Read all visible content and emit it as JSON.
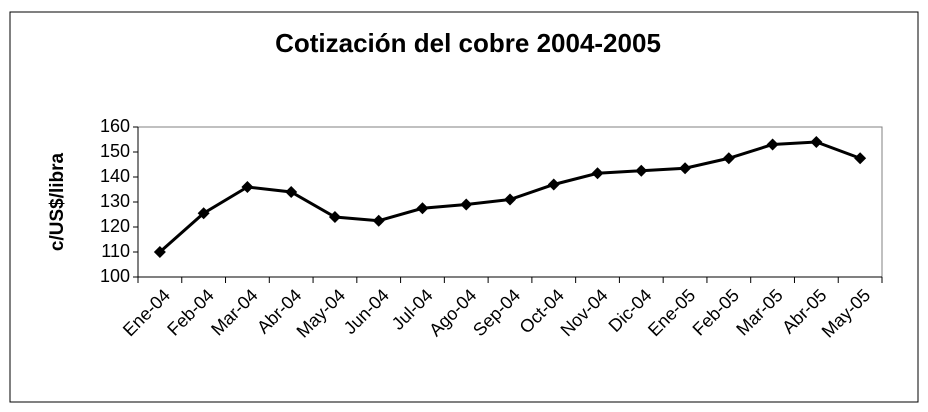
{
  "chart_data": {
    "type": "line",
    "title": "Cotización del cobre 2004-2005",
    "y_label": "c/US$/libra",
    "categories": [
      "Ene-04",
      "Feb-04",
      "Mar-04",
      "Abr-04",
      "May-04",
      "Jun-04",
      "Jul-04",
      "Ago-04",
      "Sep-04",
      "Oct-04",
      "Nov-04",
      "Dic-04",
      "Ene-05",
      "Feb-05",
      "Mar-05",
      "Abr-05",
      "May-05"
    ],
    "series": [
      {
        "name": "Cotización",
        "color": "#000000",
        "values": [
          110,
          125.5,
          136,
          134,
          124,
          122.5,
          127.5,
          129,
          131,
          137,
          141.5,
          142.5,
          143.5,
          147.5,
          153,
          154,
          147.5
        ]
      }
    ],
    "ylim": [
      100,
      160
    ],
    "yticks": [
      100,
      110,
      120,
      130,
      140,
      150,
      160
    ],
    "grid": false,
    "legend": false
  }
}
